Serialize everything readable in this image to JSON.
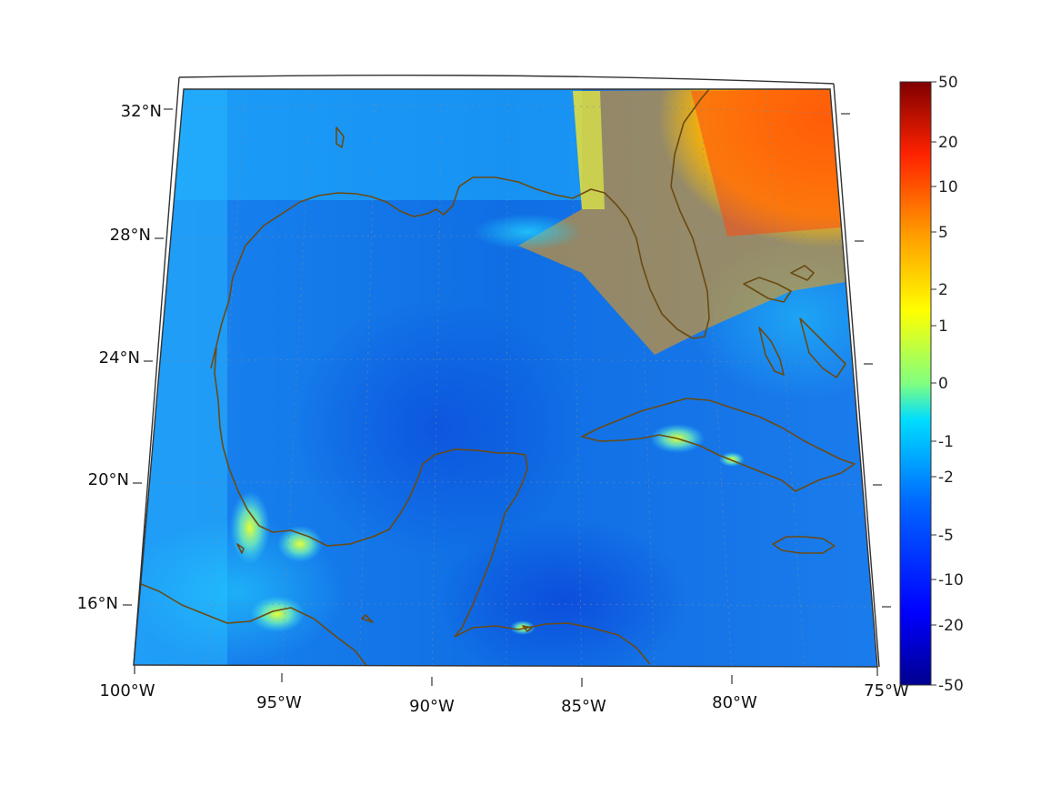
{
  "map": {
    "lon_ticks": [
      "100°W",
      "95°W",
      "90°W",
      "85°W",
      "80°W",
      "75°W"
    ],
    "lat_ticks": [
      "32°N",
      "28°N",
      "24°N",
      "20°N",
      "16°N"
    ],
    "colors": {
      "coast": "#6b4a12",
      "frame": "#333333",
      "ocean_base": "#1a7ae8"
    }
  },
  "colorbar": {
    "labels": [
      "50",
      "20",
      "10",
      "5",
      "2",
      "1",
      "0",
      "-1",
      "-2",
      "-5",
      "-10",
      "-20",
      "-50"
    ],
    "colors": [
      "#800000",
      "#ff0000",
      "#ff8000",
      "#ffff00",
      "#80ff80",
      "#00ffff",
      "#0080ff",
      "#0000ff",
      "#00008f"
    ]
  }
}
